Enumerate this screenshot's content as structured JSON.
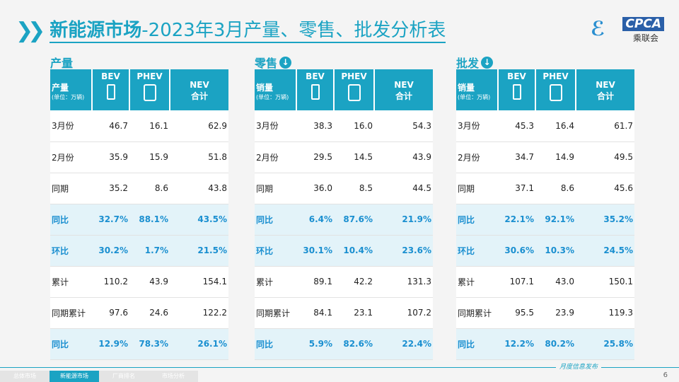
{
  "title": {
    "bold": "新能源市场",
    "rest": "-2023年3月产量、零售、批发分析表"
  },
  "logo": {
    "text": "CPCA",
    "sub": "乘联会"
  },
  "columns": [
    "BEV",
    "PHEV",
    "NEV",
    "合计"
  ],
  "unit": "(单位：万辆)",
  "tables": [
    {
      "section": "产量",
      "download": false,
      "label": "产量",
      "rows": [
        [
          "3月份",
          "46.7",
          "16.1",
          "62.9"
        ],
        [
          "2月份",
          "35.9",
          "15.9",
          "51.8"
        ],
        [
          "同期",
          "35.2",
          "8.6",
          "43.8"
        ],
        [
          "同比",
          "32.7%",
          "88.1%",
          "43.5%"
        ],
        [
          "环比",
          "30.2%",
          "1.7%",
          "21.5%"
        ],
        [
          "累计",
          "110.2",
          "43.9",
          "154.1"
        ],
        [
          "同期累计",
          "97.6",
          "24.6",
          "122.2"
        ],
        [
          "同比",
          "12.9%",
          "78.3%",
          "26.1%"
        ]
      ]
    },
    {
      "section": "零售",
      "download": true,
      "label": "销量",
      "rows": [
        [
          "3月份",
          "38.3",
          "16.0",
          "54.3"
        ],
        [
          "2月份",
          "29.5",
          "14.5",
          "43.9"
        ],
        [
          "同期",
          "36.0",
          "8.5",
          "44.5"
        ],
        [
          "同比",
          "6.4%",
          "87.6%",
          "21.9%"
        ],
        [
          "环比",
          "30.1%",
          "10.4%",
          "23.6%"
        ],
        [
          "累计",
          "89.1",
          "42.2",
          "131.3"
        ],
        [
          "同期累计",
          "84.1",
          "23.1",
          "107.2"
        ],
        [
          "同比",
          "5.9%",
          "82.6%",
          "22.4%"
        ]
      ]
    },
    {
      "section": "批发",
      "download": true,
      "label": "销量",
      "rows": [
        [
          "3月份",
          "45.3",
          "16.4",
          "61.7"
        ],
        [
          "2月份",
          "34.7",
          "14.9",
          "49.5"
        ],
        [
          "同期",
          "37.1",
          "8.6",
          "45.6"
        ],
        [
          "同比",
          "22.1%",
          "92.1%",
          "35.2%"
        ],
        [
          "环比",
          "30.6%",
          "10.3%",
          "24.5%"
        ],
        [
          "累计",
          "107.1",
          "43.0",
          "150.1"
        ],
        [
          "同期累计",
          "95.5",
          "23.9",
          "119.3"
        ],
        [
          "同比",
          "12.2%",
          "80.2%",
          "25.8%"
        ]
      ]
    }
  ],
  "footer": {
    "label": "月度信息发布",
    "page": "6",
    "tabs": [
      "总体市场",
      "新能源市场",
      "厂商排名",
      "市场分析"
    ],
    "active_tab": 1
  },
  "colors": {
    "accent": "#1ba3c3",
    "highlight_text": "#1a8fd0",
    "highlight_bg": "#e3f3f9"
  }
}
